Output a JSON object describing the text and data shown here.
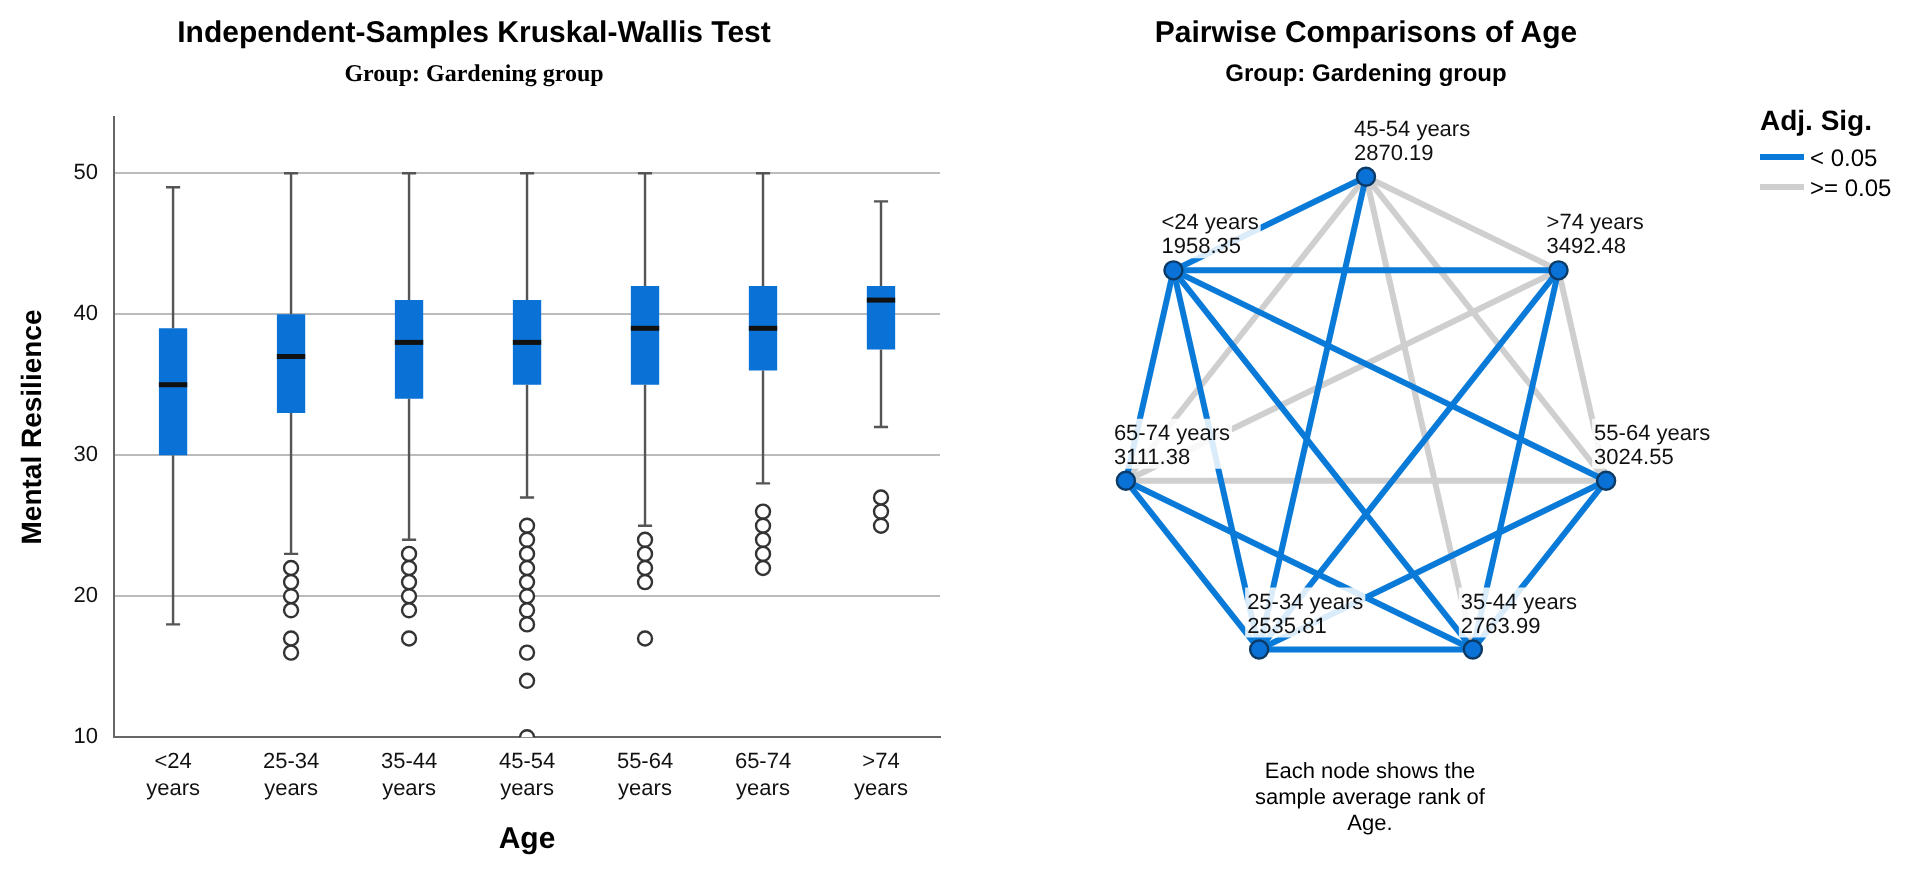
{
  "chart_data": [
    {
      "type": "box",
      "title": "Independent-Samples Kruskal-Wallis Test",
      "subtitle": "Group: Gardening group",
      "xlabel": "Age",
      "ylabel": "Mental Resilience",
      "categories": [
        "<24 years",
        "25-34 years",
        "35-44 years",
        "45-54 years",
        "55-64 years",
        "65-74 years",
        ">74 years"
      ],
      "series": [
        {
          "color": "#0a72d6",
          "boxes": [
            {
              "low": 18,
              "q1": 30,
              "median": 35,
              "q3": 39,
              "high": 49
            },
            {
              "low": 23,
              "q1": 33,
              "median": 37,
              "q3": 40,
              "high": 50,
              "outliers": [
                22,
                21,
                20,
                19,
                17,
                16
              ]
            },
            {
              "low": 24,
              "q1": 34,
              "median": 38,
              "q3": 41,
              "high": 50,
              "outliers": [
                23,
                22,
                21,
                20,
                19,
                17
              ]
            },
            {
              "low": 27,
              "q1": 35,
              "median": 38,
              "q3": 41,
              "high": 50,
              "outliers": [
                25,
                24,
                23,
                22,
                21,
                20,
                19,
                18,
                16,
                14,
                10
              ]
            },
            {
              "low": 25,
              "q1": 35,
              "median": 39,
              "q3": 42,
              "high": 50,
              "outliers": [
                24,
                23,
                22,
                21,
                17
              ]
            },
            {
              "low": 28,
              "q1": 36,
              "median": 39,
              "q3": 42,
              "high": 50,
              "outliers": [
                26,
                25,
                24,
                23,
                22
              ]
            },
            {
              "low": 32,
              "q1": 37.5,
              "median": 41,
              "q3": 42,
              "high": 48,
              "outliers": [
                27,
                26,
                25
              ]
            }
          ]
        }
      ],
      "ylim": [
        10,
        54
      ],
      "yticks": [
        10,
        20,
        30,
        40,
        50
      ],
      "grid": "y",
      "legend": false
    },
    {
      "type": "other",
      "title": "Pairwise Comparisons of Age",
      "subtitle": "Group: Gardening group",
      "legend_title": "Adj. Sig.",
      "categories": [
        "45-54 years",
        ">74 years",
        "55-64 years",
        "35-44 years",
        "25-34 years",
        "65-74 years",
        "<24 years"
      ],
      "values": [
        2870.19,
        3492.48,
        3024.55,
        2763.99,
        2535.81,
        3111.38,
        1958.35
      ],
      "data_labels": true,
      "annotations": [
        "< 0.05",
        ">= 0.05",
        "Each node shows the sample average rank of Age."
      ]
    }
  ]
}
